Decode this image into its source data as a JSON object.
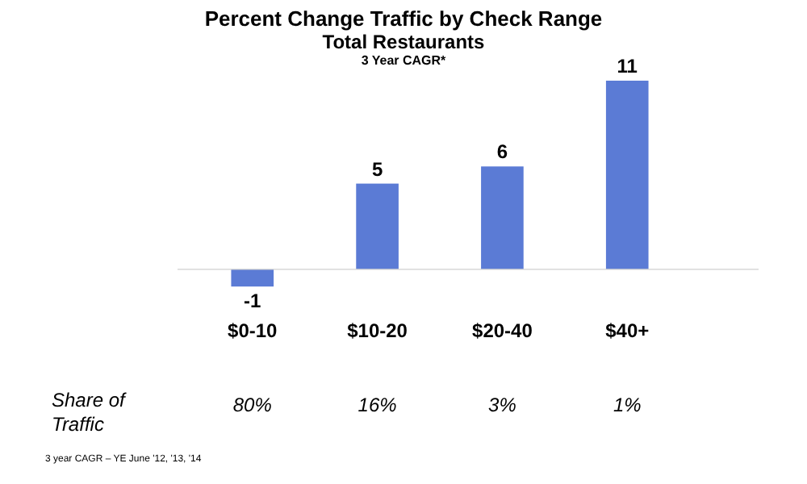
{
  "chart_data": {
    "type": "bar",
    "title": "Percent Change Traffic by Check Range",
    "subtitle": "Total Restaurants",
    "categories": [
      "$0-10",
      "$10-20",
      "$20-40",
      "$40+"
    ],
    "values": [
      -1,
      5,
      6,
      11
    ],
    "color": "#5b7bd5",
    "data_labels": true,
    "annotations": [
      "3 Year CAGR*",
      "Share of Traffic",
      "80%",
      "16%",
      "3%",
      "1%",
      "3 year CAGR – YE June '12, '13, '14"
    ]
  }
}
